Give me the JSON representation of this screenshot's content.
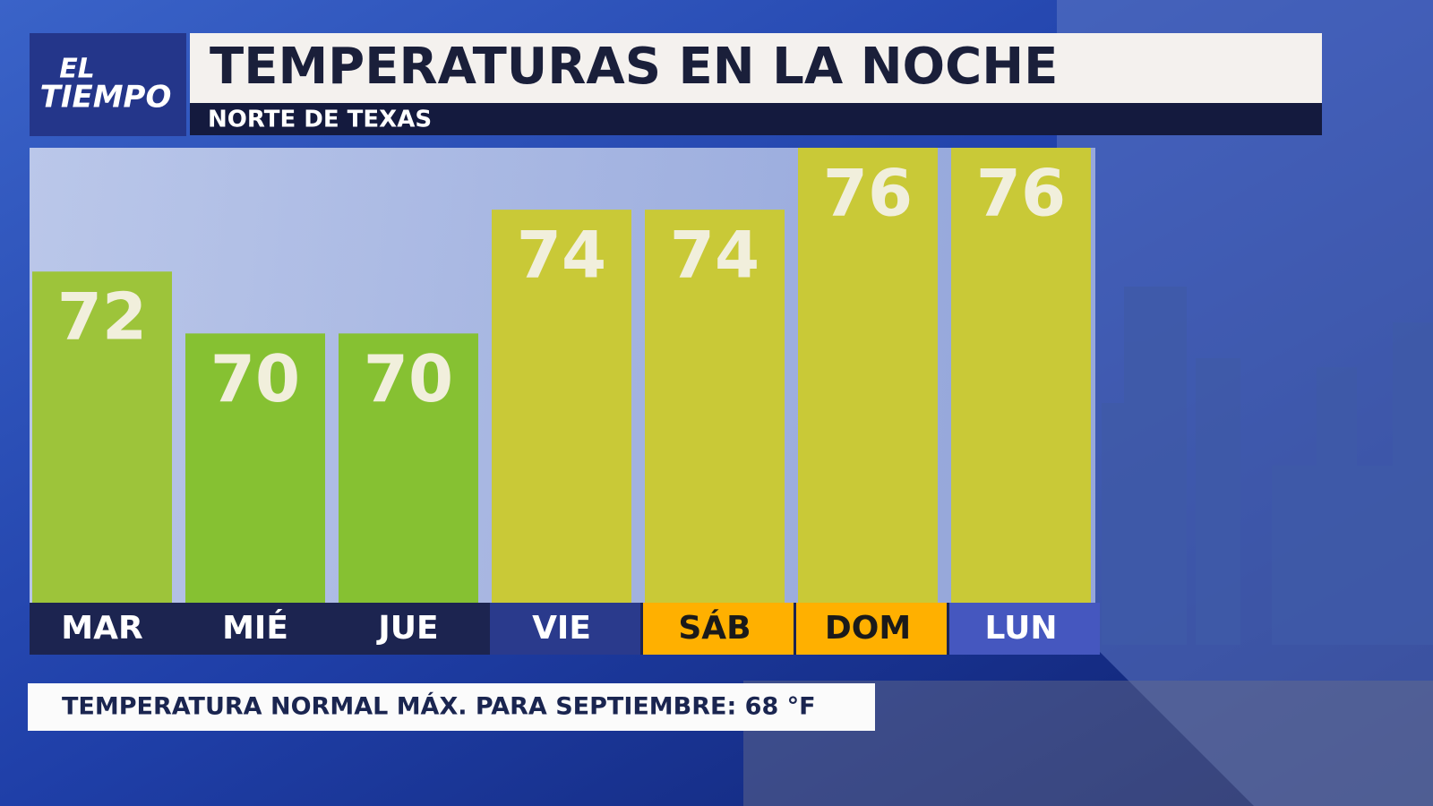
{
  "chart_data": {
    "type": "bar",
    "logo": [
      "EL",
      "TIEMPO"
    ],
    "title": "TEMPERATURAS EN LA NOCHE",
    "subtitle": "NORTE DE TEXAS",
    "categories": [
      "MAR",
      "MIÉ",
      "JUE",
      "VIE",
      "SÁB",
      "DOM",
      "LUN"
    ],
    "values": [
      72,
      70,
      70,
      74,
      74,
      76,
      76
    ],
    "colors": [
      "#9dc43a",
      "#86c132",
      "#86c132",
      "#c9c937",
      "#c9c937",
      "#c9c937",
      "#c9c937"
    ],
    "label_colors": [
      "#1c2450",
      "#1c2450",
      "#1c2450",
      "#2a3a8c",
      "#ffb000",
      "#ffb000",
      "#4557bf"
    ],
    "label_text_colors": [
      "#ffffff",
      "#ffffff",
      "#ffffff",
      "#ffffff",
      "#1a1a1a",
      "#1a1a1a",
      "#ffffff"
    ],
    "ylim": [
      61.3,
      76
    ],
    "note": "TEMPERATURA NORMAL MÁX. PARA SEPTIEMBRE: 68 °F"
  }
}
